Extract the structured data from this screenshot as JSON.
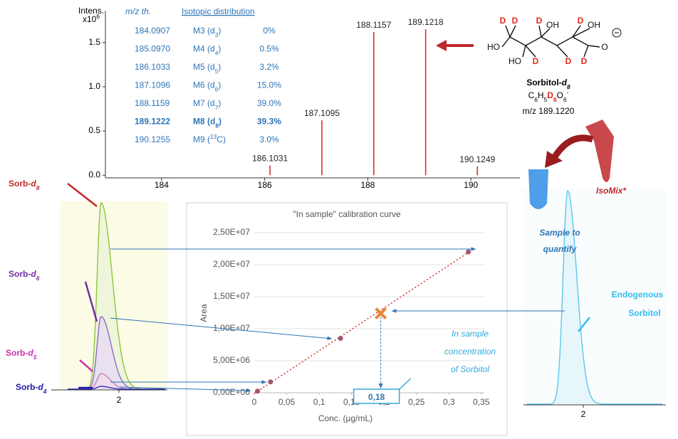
{
  "chart_data": [
    {
      "type": "bar",
      "y_label": "Intens.",
      "y_unit": [
        {
          "text": "x10"
        },
        {
          "text": "6",
          "sup": true
        }
      ],
      "x": [
        186.1031,
        187.1095,
        188.1157,
        189.1218,
        190.1249
      ],
      "values": [
        0.11,
        0.62,
        1.62,
        1.65,
        0.1
      ],
      "color": "#d9302a",
      "xlim": [
        182.91,
        190.95
      ],
      "ylim": [
        -0.03,
        1.86
      ],
      "xticks": [
        184,
        186,
        188,
        190
      ],
      "yticks": [
        {
          "value": 0,
          "label": "0.0"
        },
        0.5,
        {
          "value": 1,
          "label": "1.0"
        },
        1.5
      ]
    },
    {
      "type": "scatter",
      "title": "\"In sample\" calibration curve",
      "x_label": "Conc. (µg/mL)",
      "y_label": "Area",
      "x": [
        0.005,
        0.025,
        0.133,
        0.33
      ],
      "values": [
        250000,
        1700000,
        8500000,
        22000000
      ],
      "color": "#a0566e",
      "trendline_color": "#d9302a",
      "sample": {
        "x": 0.195,
        "y": 12400000,
        "color": "#e8873a"
      },
      "result": "0,18",
      "xlim": [
        0,
        0.355
      ],
      "ylim": [
        0,
        25500000
      ],
      "xticks": [
        {
          "value": 0,
          "label": "0"
        },
        {
          "value": 0.05,
          "label": "0,05"
        },
        {
          "value": 0.1,
          "label": "0,1"
        },
        {
          "value": 0.15,
          "label": "0,15"
        },
        {
          "value": 0.2,
          "label": "0,2"
        },
        {
          "value": 0.25,
          "label": "0,25"
        },
        {
          "value": 0.3,
          "label": "0,3"
        },
        {
          "value": 0.35,
          "label": "0,35"
        }
      ],
      "yticks": [
        {
          "value": 0,
          "label": "0,00E+00"
        },
        {
          "value": 5000000,
          "label": "5,00E+06"
        },
        {
          "value": 10000000,
          "label": "1,00E+07"
        },
        {
          "value": 15000000,
          "label": "1,50E+07"
        },
        {
          "value": 20000000,
          "label": "2,00E+07"
        },
        {
          "value": 25000000,
          "label": "2,50E+07"
        }
      ],
      "grid": true
    }
  ],
  "table": {
    "header": [
      "m/z th.",
      "Isotopic distribution"
    ],
    "rows": [
      {
        "mz": "184.0907",
        "isotope": [
          {
            "text": "M3 (d"
          },
          {
            "text": "3",
            "sub": true
          },
          {
            "text": ")"
          }
        ],
        "share": "0%"
      },
      {
        "mz": "185.0970",
        "isotope": [
          {
            "text": "M4 (d"
          },
          {
            "text": "4",
            "sub": true
          },
          {
            "text": ")"
          }
        ],
        "share": "0.5%"
      },
      {
        "mz": "186.1033",
        "isotope": [
          {
            "text": "M5 (d"
          },
          {
            "text": "5",
            "sub": true
          },
          {
            "text": ")"
          }
        ],
        "share": "3.2%"
      },
      {
        "mz": "187.1096",
        "isotope": [
          {
            "text": "M6 (d"
          },
          {
            "text": "6",
            "sub": true
          },
          {
            "text": ")"
          }
        ],
        "share": "15.0%"
      },
      {
        "mz": "188.1159",
        "isotope": [
          {
            "text": "M7 (d"
          },
          {
            "text": "7",
            "sub": true
          },
          {
            "text": ")"
          }
        ],
        "share": "39.0%"
      },
      {
        "mz": "189.1222",
        "isotope": [
          {
            "text": "M8 (d"
          },
          {
            "text": "8",
            "sub": true
          },
          {
            "text": ")"
          }
        ],
        "share": "39.3%",
        "bold": true
      },
      {
        "mz": "190.1255",
        "isotope": [
          {
            "text": "M9 ("
          },
          {
            "text": "13",
            "sup": true
          },
          {
            "text": "C)"
          }
        ],
        "share": "3.0%"
      }
    ]
  },
  "molecule": {
    "atoms": [
      {
        "text": "D",
        "color": "#e0261f"
      },
      {
        "text": "D",
        "color": "#e0261f"
      },
      {
        "text": "D",
        "color": "#e0261f"
      },
      {
        "text": "OH",
        "color": "#111111"
      },
      {
        "text": "D",
        "color": "#e0261f"
      },
      {
        "text": "OH",
        "color": "#111111"
      },
      {
        "text": "HO",
        "color": "#111111"
      },
      {
        "text": "O",
        "color": "#111111"
      },
      {
        "text": "HO",
        "color": "#111111"
      },
      {
        "text": "D",
        "color": "#e0261f"
      },
      {
        "text": "D",
        "color": "#e0261f"
      },
      {
        "text": "D",
        "color": "#e0261f"
      }
    ],
    "name": [
      {
        "text": "Sorbitol-"
      },
      {
        "text": "d",
        "italic": true
      },
      {
        "text": "8",
        "sub": true,
        "italic": true
      }
    ],
    "formula": [
      {
        "text": "C"
      },
      {
        "text": "6",
        "sub": true
      },
      {
        "text": "H"
      },
      {
        "text": "5",
        "sub": true
      },
      {
        "text": "D",
        "color": "#e0261f",
        "bold": true
      },
      {
        "text": "8",
        "sub": true,
        "color": "#e0261f",
        "bold": true
      },
      {
        "text": "O"
      },
      {
        "text": "6",
        "sub": true
      },
      {
        "text": "-",
        "sup": true
      }
    ],
    "mz": "m/z 189.1220"
  },
  "left_trace": {
    "axis_label": "2",
    "labels": [
      {
        "parts": [
          {
            "text": "Sorb-"
          },
          {
            "text": "d",
            "italic": true
          },
          {
            "text": "8",
            "sub": true,
            "italic": true
          }
        ],
        "color": "#c0282d"
      },
      {
        "parts": [
          {
            "text": "Sorb-"
          },
          {
            "text": "d",
            "italic": true
          },
          {
            "text": "6",
            "sub": true,
            "italic": true
          }
        ],
        "color": "#7030a0"
      },
      {
        "parts": [
          {
            "text": "Sorb-"
          },
          {
            "text": "d",
            "italic": true
          },
          {
            "text": "5",
            "sub": true,
            "italic": true
          }
        ],
        "color": "#cc2fae"
      },
      {
        "parts": [
          {
            "text": "Sorb-"
          },
          {
            "text": "d",
            "italic": true
          },
          {
            "text": "4",
            "sub": true,
            "italic": true
          }
        ],
        "color": "#1f1aa8"
      }
    ]
  },
  "right_trace": {
    "axis_label": "2",
    "label": [
      "Endogenous",
      "Sorbitol"
    ]
  },
  "isomix": "IsoMix*",
  "sample": [
    "Sample to",
    "quantify"
  ],
  "annotation": [
    "In sample",
    "concentration",
    "of Sorbitol"
  ]
}
